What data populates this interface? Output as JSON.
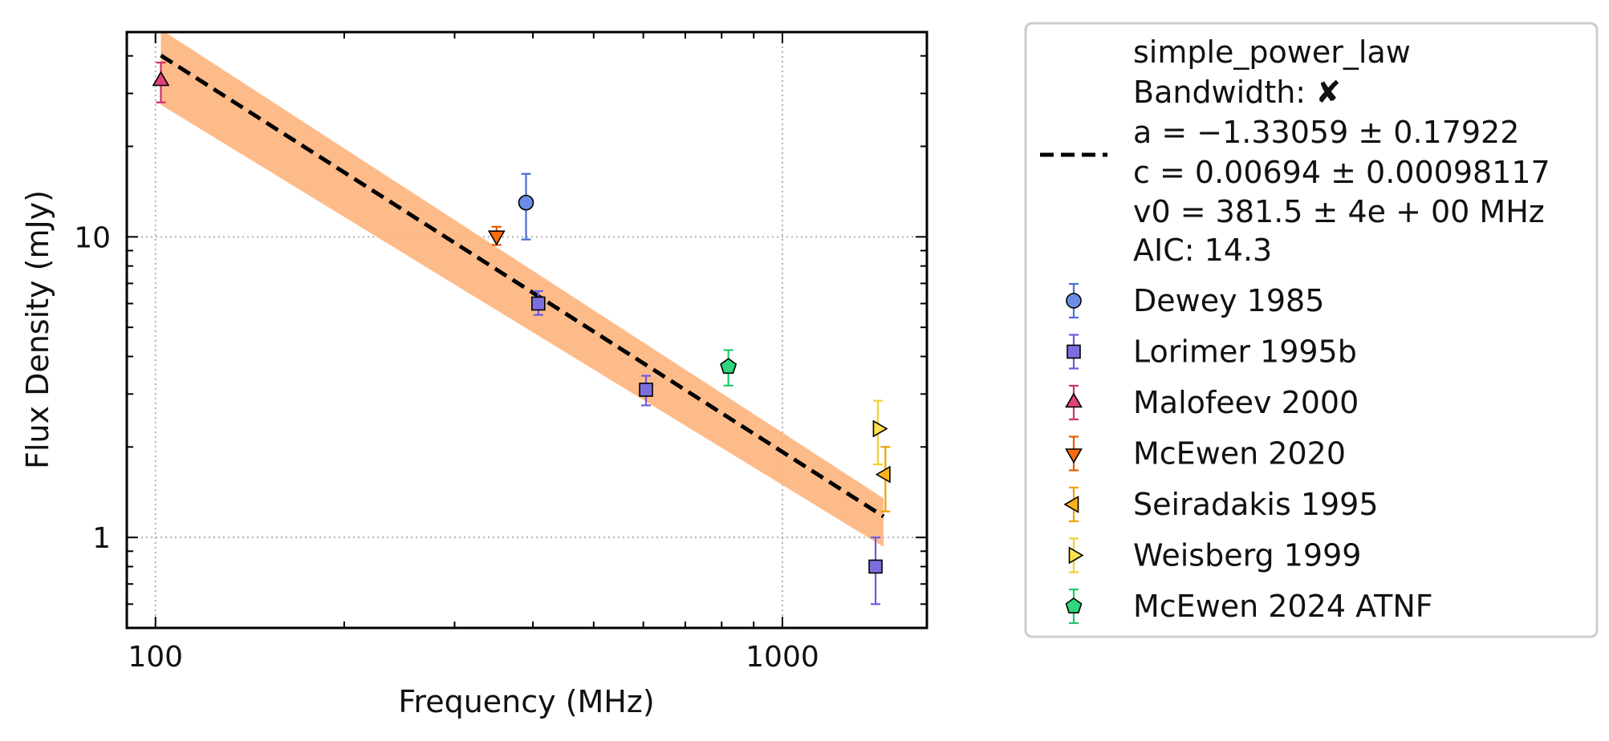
{
  "chart_data": {
    "type": "scatter",
    "xlabel": "Frequency (MHz)",
    "ylabel": "Flux Density (mJy)",
    "x_scale": "log",
    "y_scale": "log",
    "xlim": [
      90,
      1700
    ],
    "ylim": [
      0.5,
      48
    ],
    "x_ticks": [
      {
        "value": 100,
        "label": "100"
      },
      {
        "value": 1000,
        "label": "1000"
      }
    ],
    "y_ticks": [
      {
        "value": 1,
        "label": "1"
      },
      {
        "value": 10,
        "label": "10"
      }
    ],
    "grid": true,
    "legend_position": "outside-right",
    "fit": {
      "model": "simple_power_law",
      "bandwidth_label": "Bandwidth:",
      "bandwidth_symbol": "✘",
      "params_text": [
        "a = −1.33059 ± 0.17922",
        "c = 0.00694 ± 0.00098117",
        "v0 = 381.5 ± 4e + 00 MHz"
      ],
      "aic_text": "AIC: 14.3",
      "a": -1.33059,
      "c_jy": 0.00694,
      "v0_mhz": 381.5,
      "x_range": [
        102,
        1450
      ],
      "band_upper": [
        [
          102,
          49
        ],
        [
          1450,
          1.35
        ]
      ],
      "band_lower": [
        [
          102,
          27.5
        ],
        [
          1450,
          0.93
        ]
      ],
      "line_color": "#000000",
      "band_color": "#fdb47d"
    },
    "series": [
      {
        "name": "Dewey 1985",
        "marker": "circle",
        "color": "#6a8ee8",
        "edge": "#4a6fd6",
        "points": [
          {
            "x": 390,
            "y": 13.0,
            "ylo": 9.8,
            "yhi": 16.2
          }
        ]
      },
      {
        "name": "Lorimer 1995b",
        "marker": "square",
        "color": "#7b6fe0",
        "edge": "#6a5be0",
        "points": [
          {
            "x": 408,
            "y": 6.0,
            "ylo": 5.5,
            "yhi": 6.6
          },
          {
            "x": 606,
            "y": 3.1,
            "ylo": 2.75,
            "yhi": 3.45
          },
          {
            "x": 1408,
            "y": 0.8,
            "ylo": 0.6,
            "yhi": 1.0
          }
        ]
      },
      {
        "name": "Malofeev 2000",
        "marker": "triangle-up",
        "color": "#e0427a",
        "edge": "#d0306a",
        "points": [
          {
            "x": 102,
            "y": 33,
            "ylo": 28,
            "yhi": 38
          }
        ]
      },
      {
        "name": "McEwen 2020",
        "marker": "triangle-down",
        "color": "#ff6a0d",
        "edge": "#e85a00",
        "points": [
          {
            "x": 350,
            "y": 10.1,
            "ylo": 9.4,
            "yhi": 10.8
          }
        ]
      },
      {
        "name": "Seiradakis 1995",
        "marker": "triangle-left",
        "color": "#ffb31a",
        "edge": "#f0a000",
        "points": [
          {
            "x": 1460,
            "y": 1.62,
            "ylo": 1.22,
            "yhi": 2.0
          }
        ]
      },
      {
        "name": "Weisberg 1999",
        "marker": "triangle-right",
        "color": "#ffe24d",
        "edge": "#f2d02a",
        "points": [
          {
            "x": 1420,
            "y": 2.3,
            "ylo": 1.75,
            "yhi": 2.85
          }
        ]
      },
      {
        "name": "McEwen 2024 ATNF",
        "marker": "pentagon",
        "color": "#2fd67e",
        "edge": "#1ec86c",
        "points": [
          {
            "x": 820,
            "y": 3.7,
            "ylo": 3.2,
            "yhi": 4.2
          }
        ]
      }
    ]
  }
}
